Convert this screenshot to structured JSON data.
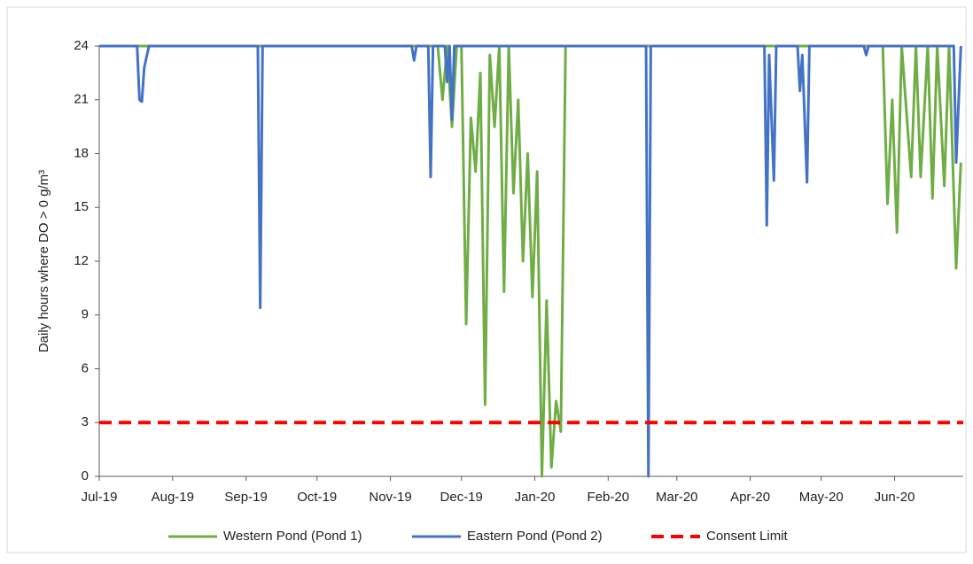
{
  "chart_data": {
    "type": "line",
    "y_label": "Daily hours where DO > 0 g/m³",
    "xlim": [
      0,
      365
    ],
    "ylim": [
      0,
      24
    ],
    "yticks": [
      0,
      3,
      6,
      9,
      12,
      15,
      18,
      21,
      24
    ],
    "xticks": [
      {
        "value": 0,
        "label": "Jul-19"
      },
      {
        "value": 31,
        "label": "Aug-19"
      },
      {
        "value": 62,
        "label": "Sep-19"
      },
      {
        "value": 92,
        "label": "Oct-19"
      },
      {
        "value": 123,
        "label": "Nov-19"
      },
      {
        "value": 153,
        "label": "Dec-19"
      },
      {
        "value": 184,
        "label": "Jan-20"
      },
      {
        "value": 215,
        "label": "Feb-20"
      },
      {
        "value": 244,
        "label": "Mar-20"
      },
      {
        "value": 275,
        "label": "Apr-20"
      },
      {
        "value": 305,
        "label": "May-20"
      },
      {
        "value": 336,
        "label": "Jun-20"
      }
    ],
    "series": [
      {
        "name": "Western Pond (Pond 1)",
        "color": "#70ad47",
        "dashed": false,
        "x": [
          0,
          143,
          145,
          147,
          149,
          151,
          153,
          155,
          157,
          159,
          161,
          163,
          165,
          167,
          169,
          171,
          173,
          175,
          177,
          179,
          181,
          183,
          185,
          187,
          189,
          191,
          193,
          195,
          197,
          331,
          333,
          335,
          337,
          339,
          343,
          345,
          347,
          350,
          352,
          354,
          357,
          359,
          362,
          364
        ],
        "values": [
          24,
          24,
          21,
          24,
          19.5,
          24,
          24,
          8.5,
          20,
          17,
          22.5,
          4,
          23.5,
          19.5,
          24,
          10.3,
          24,
          15.8,
          21,
          12,
          18,
          10,
          17,
          0,
          9.8,
          0.5,
          4.2,
          2.5,
          24,
          24,
          15.2,
          21,
          13.6,
          24,
          16.7,
          24,
          16.7,
          24,
          15.5,
          24,
          16.2,
          24,
          11.6,
          17.5
        ]
      },
      {
        "name": "Eastern Pond (Pond 2)",
        "color": "#4472c4",
        "dashed": false,
        "x": [
          0,
          16,
          17,
          18,
          19,
          21,
          67,
          68,
          69,
          132,
          133,
          134,
          139,
          140,
          141,
          146,
          147,
          148,
          149,
          150,
          231,
          232,
          233,
          281,
          282,
          283,
          285,
          286,
          295,
          296,
          297,
          299,
          300,
          323,
          324,
          325,
          361,
          362,
          364
        ],
        "values": [
          24,
          24,
          21,
          20.9,
          22.8,
          24,
          24,
          9.4,
          24,
          24,
          23.2,
          24,
          24,
          16.7,
          24,
          24,
          22,
          24,
          19.9,
          24,
          24,
          0,
          24,
          24,
          14,
          23.5,
          16.5,
          24,
          24,
          21.5,
          23.5,
          16.4,
          24,
          24,
          23.5,
          24,
          24,
          17.5,
          24
        ]
      },
      {
        "name": "Consent Limit",
        "color": "#ff0000",
        "dashed": true,
        "x": [
          0,
          365
        ],
        "values": [
          3,
          3
        ]
      }
    ]
  }
}
